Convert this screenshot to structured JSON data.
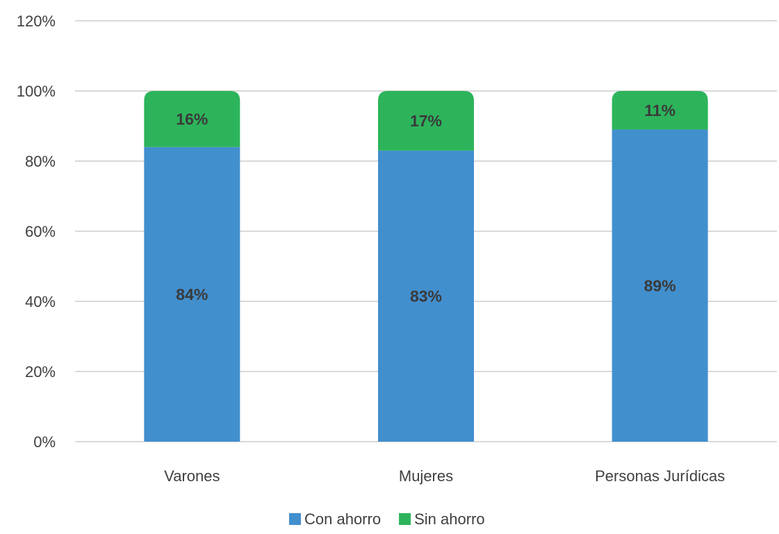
{
  "chart_data": {
    "type": "bar",
    "stacked": true,
    "percent_stacked": true,
    "categories": [
      "Varones",
      "Mujeres",
      "Personas Jurídicas"
    ],
    "series": [
      {
        "name": "Con ahorro",
        "color": "#428fce",
        "values": [
          84,
          83,
          89
        ],
        "labels": [
          "84%",
          "83%",
          "89%"
        ]
      },
      {
        "name": "Sin ahorro",
        "color": "#2db45b",
        "values": [
          16,
          17,
          11
        ],
        "labels": [
          "16%",
          "17%",
          "11%"
        ]
      }
    ],
    "title": "",
    "xlabel": "",
    "ylabel": "",
    "ylim": [
      0,
      120
    ],
    "yticks": [
      0,
      20,
      40,
      60,
      80,
      100,
      120
    ],
    "ytick_labels": [
      "0%",
      "20%",
      "40%",
      "60%",
      "80%",
      "100%",
      "120%"
    ],
    "grid": true,
    "legend": "bottom",
    "top_corners_rounded": true
  }
}
